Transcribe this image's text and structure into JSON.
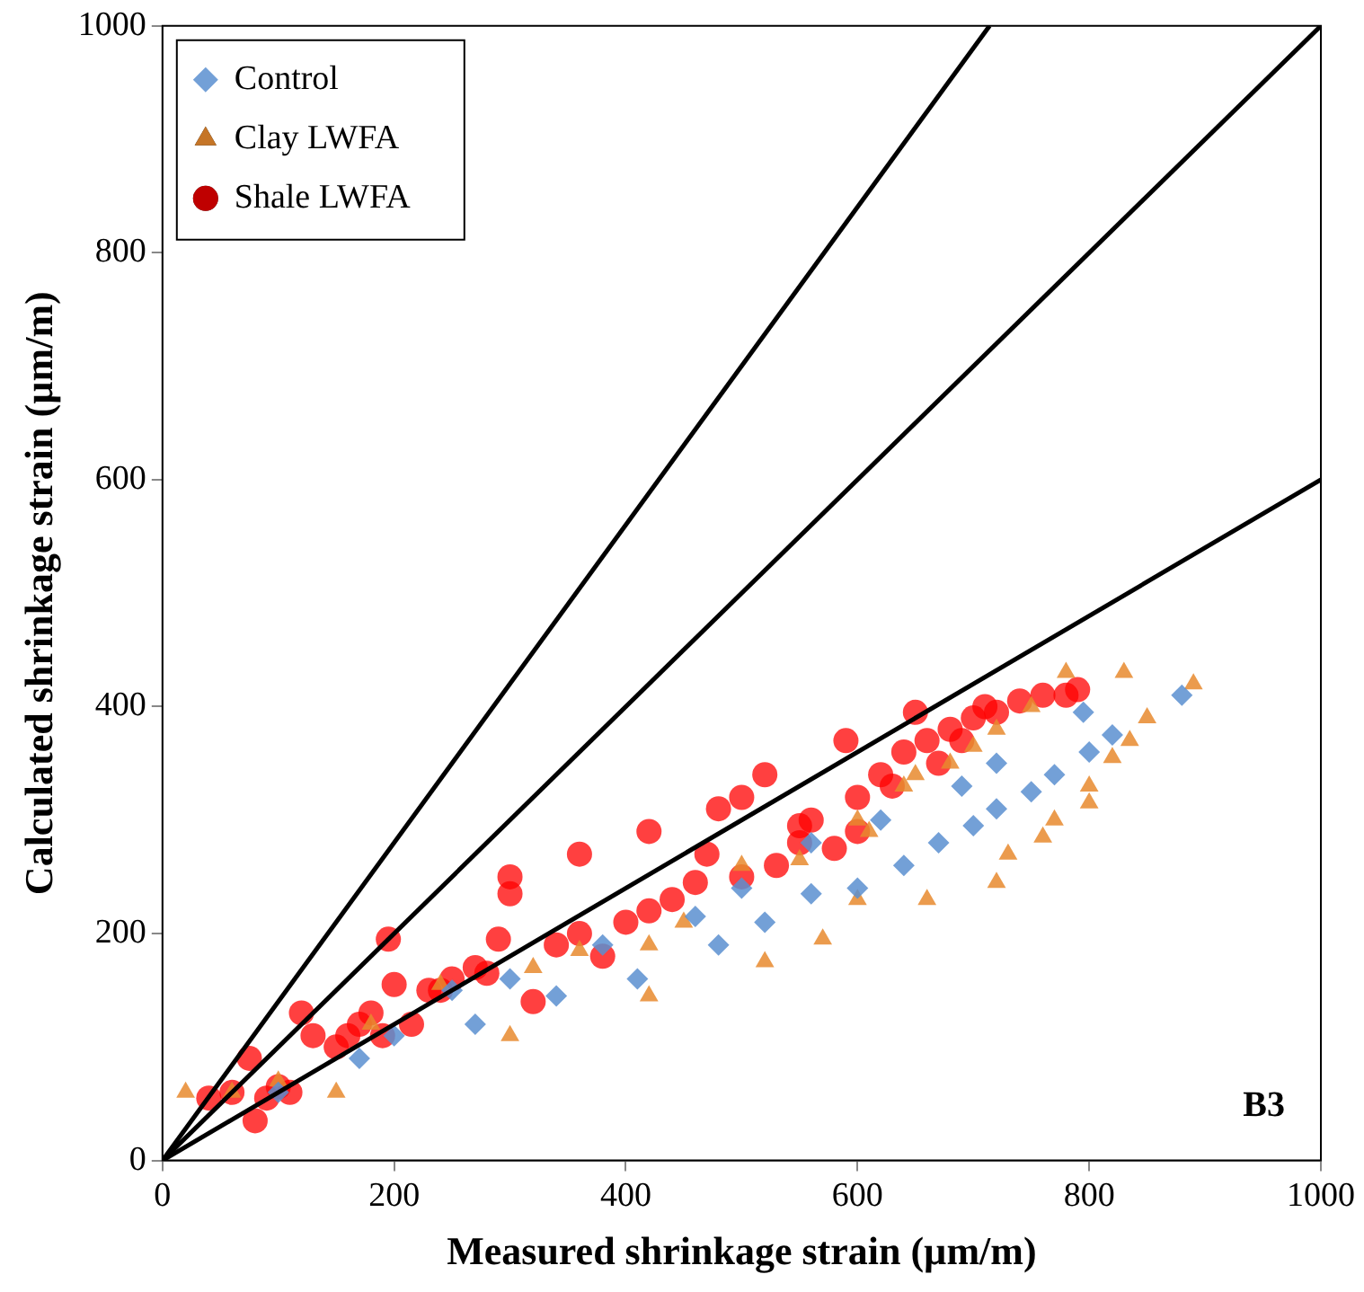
{
  "chart_data": {
    "type": "scatter",
    "xlabel": "Measured shrinkage strain (µm/m)",
    "ylabel": "Calculated shrinkage strain (µm/m)",
    "xlim": [
      0,
      1000
    ],
    "ylim": [
      0,
      1000
    ],
    "xticks": [
      0,
      200,
      400,
      600,
      800,
      1000
    ],
    "yticks": [
      0,
      200,
      400,
      600,
      800,
      1000
    ],
    "grid": false,
    "legend": "top left",
    "annotations": [
      "B3"
    ],
    "series": [
      {
        "name": "Control",
        "color": "#5b8fd0",
        "marker": "diamond",
        "x": [
          100,
          170,
          200,
          250,
          270,
          300,
          340,
          380,
          410,
          460,
          480,
          500,
          520,
          560,
          560,
          600,
          620,
          640,
          670,
          690,
          700,
          720,
          720,
          750,
          770,
          795,
          800,
          820,
          880
        ],
        "values": [
          60,
          90,
          110,
          150,
          120,
          160,
          145,
          190,
          160,
          215,
          190,
          240,
          210,
          235,
          280,
          240,
          300,
          260,
          280,
          330,
          295,
          310,
          350,
          325,
          340,
          395,
          360,
          375,
          410
        ]
      },
      {
        "name": "Clay LWFA",
        "color": "#e8892e",
        "marker": "triangle",
        "x": [
          20,
          60,
          100,
          150,
          180,
          240,
          300,
          320,
          360,
          420,
          420,
          450,
          500,
          520,
          550,
          560,
          570,
          600,
          600,
          610,
          640,
          650,
          660,
          680,
          700,
          720,
          720,
          730,
          750,
          760,
          770,
          780,
          800,
          800,
          820,
          830,
          835,
          850,
          890
        ],
        "values": [
          60,
          60,
          70,
          60,
          120,
          155,
          110,
          170,
          185,
          145,
          190,
          210,
          260,
          175,
          265,
          null,
          195,
          230,
          300,
          290,
          330,
          340,
          230,
          350,
          365,
          245,
          380,
          270,
          400,
          285,
          300,
          430,
          315,
          330,
          355,
          430,
          370,
          390,
          420
        ]
      },
      {
        "name": "Shale LWFA",
        "color": "#ff0000",
        "marker": "circle",
        "x": [
          40,
          60,
          75,
          80,
          90,
          100,
          110,
          120,
          130,
          150,
          160,
          170,
          180,
          190,
          195,
          200,
          215,
          230,
          240,
          250,
          270,
          280,
          290,
          300,
          300,
          320,
          340,
          360,
          360,
          380,
          400,
          420,
          420,
          440,
          460,
          470,
          480,
          500,
          500,
          520,
          530,
          550,
          550,
          560,
          580,
          590,
          600,
          600,
          620,
          630,
          640,
          650,
          660,
          670,
          680,
          690,
          700,
          710,
          720,
          740,
          760,
          780,
          790
        ],
        "values": [
          55,
          60,
          90,
          35,
          55,
          65,
          60,
          130,
          110,
          100,
          110,
          120,
          130,
          110,
          195,
          155,
          120,
          150,
          150,
          160,
          170,
          165,
          195,
          250,
          235,
          140,
          190,
          270,
          200,
          180,
          210,
          290,
          220,
          230,
          245,
          270,
          310,
          320,
          250,
          340,
          260,
          280,
          295,
          300,
          275,
          370,
          320,
          290,
          340,
          330,
          360,
          395,
          370,
          350,
          380,
          370,
          390,
          400,
          395,
          405,
          410,
          410,
          415
        ]
      },
      {
        "type": "line",
        "color": "#000000",
        "x": [
          0,
          714
        ],
        "values": [
          0,
          1000
        ]
      },
      {
        "type": "line",
        "color": "#000000",
        "x": [
          0,
          1000
        ],
        "values": [
          0,
          1000
        ]
      },
      {
        "type": "line",
        "color": "#000000",
        "x": [
          0,
          1000
        ],
        "values": [
          0,
          600
        ]
      }
    ]
  }
}
